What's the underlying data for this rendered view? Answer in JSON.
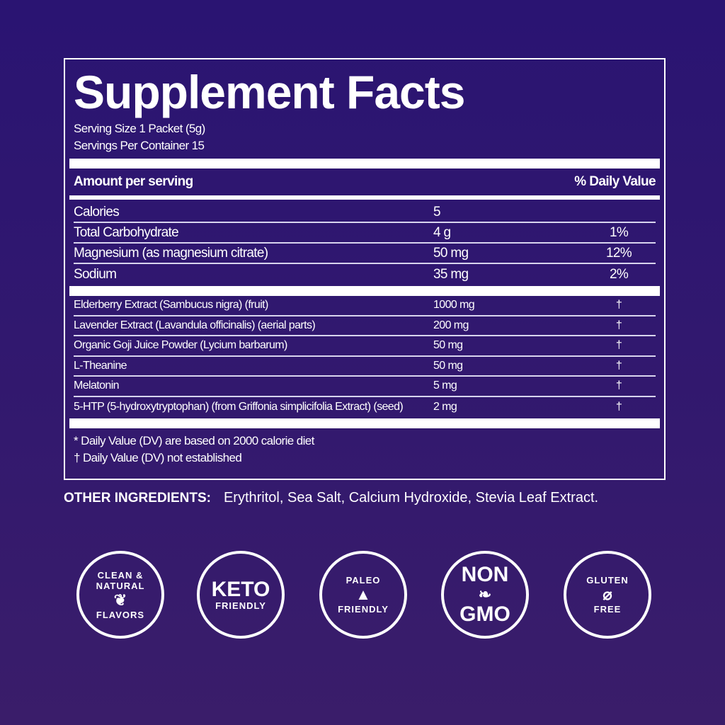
{
  "title": "Supplement Facts",
  "serving_size": "Serving Size 1 Packet (5g)",
  "servings_per_container": "Servings Per Container 15",
  "header": {
    "amount": "Amount per serving",
    "dv": "% Daily Value"
  },
  "nutrients": [
    {
      "name": "Calories",
      "amount": "5",
      "dv": ""
    },
    {
      "name": "Total Carbohydrate",
      "amount": "4 g",
      "dv": "1%"
    },
    {
      "name": "Magnesium (as magnesium citrate)",
      "amount": "50 mg",
      "dv": "12%"
    },
    {
      "name": "Sodium",
      "amount": "35 mg",
      "dv": "2%"
    }
  ],
  "ingredients": [
    {
      "name": "Elderberry Extract (Sambucus nigra) (fruit)",
      "amount": "1000 mg",
      "dv": "†"
    },
    {
      "name": "Lavender Extract (Lavandula officinalis) (aerial parts)",
      "amount": "200 mg",
      "dv": "†"
    },
    {
      "name": "Organic Goji Juice Powder (Lycium barbarum)",
      "amount": "50 mg",
      "dv": "†"
    },
    {
      "name": "L-Theanine",
      "amount": "50 mg",
      "dv": "†"
    },
    {
      "name": "Melatonin",
      "amount": "5 mg",
      "dv": "†"
    },
    {
      "name": "5-HTP (5-hydroxytryptophan) (from Griffonia simplicifolia Extract) (seed)",
      "amount": "2 mg",
      "dv": "†"
    }
  ],
  "footnotes": [
    "* Daily Value (DV) are based on 2000 calorie diet",
    "† Daily Value (DV) not established"
  ],
  "other_ingredients": {
    "label": "OTHER INGREDIENTS:",
    "value": "Erythritol, Sea Salt, Calcium Hydroxide, Stevia Leaf Extract."
  },
  "badges": [
    {
      "icon": "leaf-drop-icon",
      "top": "CLEAN & NATURAL",
      "bottom": "FLAVORS"
    },
    {
      "icon": "keto-icon",
      "top": "KETO",
      "bottom": "FRIENDLY"
    },
    {
      "icon": "paleo-arrowhead-icon",
      "top": "PALEO",
      "bottom": "FRIENDLY"
    },
    {
      "icon": "sprout-icon",
      "top": "NON",
      "bottom": "GMO"
    },
    {
      "icon": "wheat-crossed-icon",
      "top": "GLUTEN",
      "bottom": "FREE"
    }
  ]
}
